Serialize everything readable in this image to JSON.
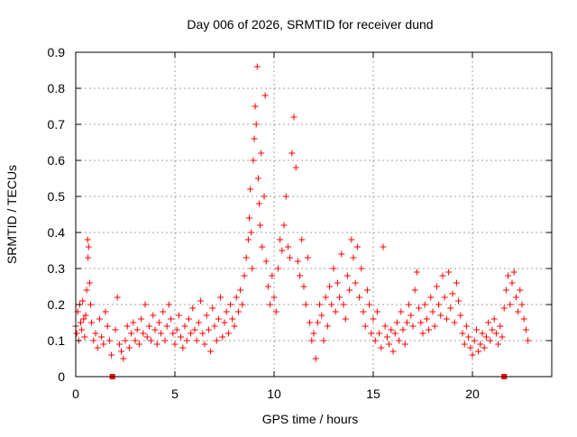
{
  "chart_data": {
    "type": "scatter",
    "title": "Day 006 of 2026, SRMTID for receiver dund",
    "xlabel": "GPS time / hours",
    "ylabel": "SRMTID / TECUs",
    "xlim": [
      0,
      24
    ],
    "ylim": [
      0,
      0.9
    ],
    "xticks": [
      0,
      5,
      10,
      15,
      20
    ],
    "xtick_labels": [
      "0",
      "5",
      "10",
      "15",
      "20"
    ],
    "yticks": [
      0,
      0.1,
      0.2,
      0.3,
      0.4,
      0.5,
      0.6,
      0.7,
      0.8,
      0.9
    ],
    "ytick_labels": [
      "0",
      "0.1",
      "0.2",
      "0.3",
      "0.4",
      "0.5",
      "0.6",
      "0.7",
      "0.8",
      "0.9"
    ],
    "grid": true,
    "marker": "plus",
    "color": "#ff0000",
    "baseline_markers": [
      {
        "x": 1.85,
        "y": 0
      },
      {
        "x": 21.6,
        "y": 0
      }
    ],
    "series": [
      {
        "name": "SRMTID",
        "points": [
          [
            0.0,
            0.14
          ],
          [
            0.05,
            0.12
          ],
          [
            0.1,
            0.18
          ],
          [
            0.15,
            0.1
          ],
          [
            0.2,
            0.2
          ],
          [
            0.25,
            0.15
          ],
          [
            0.3,
            0.13
          ],
          [
            0.35,
            0.21
          ],
          [
            0.4,
            0.16
          ],
          [
            0.45,
            0.11
          ],
          [
            0.5,
            0.17
          ],
          [
            0.55,
            0.24
          ],
          [
            0.6,
            0.38
          ],
          [
            0.62,
            0.33
          ],
          [
            0.65,
            0.36
          ],
          [
            0.7,
            0.26
          ],
          [
            0.75,
            0.2
          ],
          [
            0.8,
            0.15
          ],
          [
            0.9,
            0.1
          ],
          [
            1.0,
            0.12
          ],
          [
            1.1,
            0.08
          ],
          [
            1.2,
            0.16
          ],
          [
            1.3,
            0.11
          ],
          [
            1.4,
            0.09
          ],
          [
            1.5,
            0.18
          ],
          [
            1.6,
            0.14
          ],
          [
            1.7,
            0.1
          ],
          [
            1.8,
            0.06
          ],
          [
            2.0,
            0.13
          ],
          [
            2.1,
            0.22
          ],
          [
            2.2,
            0.09
          ],
          [
            2.3,
            0.07
          ],
          [
            2.4,
            0.05
          ],
          [
            2.5,
            0.1
          ],
          [
            2.6,
            0.14
          ],
          [
            2.7,
            0.08
          ],
          [
            2.8,
            0.12
          ],
          [
            2.9,
            0.15
          ],
          [
            3.0,
            0.1
          ],
          [
            3.1,
            0.13
          ],
          [
            3.2,
            0.09
          ],
          [
            3.3,
            0.16
          ],
          [
            3.4,
            0.12
          ],
          [
            3.5,
            0.2
          ],
          [
            3.6,
            0.11
          ],
          [
            3.7,
            0.14
          ],
          [
            3.8,
            0.1
          ],
          [
            3.9,
            0.17
          ],
          [
            4.0,
            0.13
          ],
          [
            4.1,
            0.09
          ],
          [
            4.2,
            0.15
          ],
          [
            4.3,
            0.12
          ],
          [
            4.4,
            0.18
          ],
          [
            4.5,
            0.1
          ],
          [
            4.6,
            0.14
          ],
          [
            4.7,
            0.2
          ],
          [
            4.8,
            0.16
          ],
          [
            4.9,
            0.12
          ],
          [
            5.0,
            0.09
          ],
          [
            5.1,
            0.13
          ],
          [
            5.2,
            0.17
          ],
          [
            5.3,
            0.11
          ],
          [
            5.4,
            0.08
          ],
          [
            5.5,
            0.14
          ],
          [
            5.6,
            0.1
          ],
          [
            5.7,
            0.16
          ],
          [
            5.8,
            0.12
          ],
          [
            5.9,
            0.19
          ],
          [
            6.0,
            0.13
          ],
          [
            6.1,
            0.1
          ],
          [
            6.2,
            0.15
          ],
          [
            6.3,
            0.21
          ],
          [
            6.4,
            0.12
          ],
          [
            6.5,
            0.09
          ],
          [
            6.6,
            0.17
          ],
          [
            6.7,
            0.13
          ],
          [
            6.8,
            0.07
          ],
          [
            6.9,
            0.19
          ],
          [
            7.0,
            0.14
          ],
          [
            7.1,
            0.1
          ],
          [
            7.2,
            0.16
          ],
          [
            7.3,
            0.22
          ],
          [
            7.4,
            0.11
          ],
          [
            7.5,
            0.15
          ],
          [
            7.6,
            0.18
          ],
          [
            7.7,
            0.12
          ],
          [
            7.8,
            0.2
          ],
          [
            7.9,
            0.16
          ],
          [
            8.0,
            0.14
          ],
          [
            8.1,
            0.22
          ],
          [
            8.2,
            0.18
          ],
          [
            8.3,
            0.24
          ],
          [
            8.4,
            0.2
          ],
          [
            8.5,
            0.28
          ],
          [
            8.6,
            0.33
          ],
          [
            8.7,
            0.38
          ],
          [
            8.75,
            0.44
          ],
          [
            8.8,
            0.52
          ],
          [
            8.85,
            0.4
          ],
          [
            8.9,
            0.3
          ],
          [
            8.95,
            0.6
          ],
          [
            9.0,
            0.66
          ],
          [
            9.05,
            0.75
          ],
          [
            9.1,
            0.7
          ],
          [
            9.15,
            0.86
          ],
          [
            9.2,
            0.55
          ],
          [
            9.25,
            0.48
          ],
          [
            9.3,
            0.42
          ],
          [
            9.35,
            0.62
          ],
          [
            9.4,
            0.36
          ],
          [
            9.5,
            0.5
          ],
          [
            9.55,
            0.78
          ],
          [
            9.6,
            0.32
          ],
          [
            9.7,
            0.25
          ],
          [
            9.8,
            0.2
          ],
          [
            9.9,
            0.28
          ],
          [
            10.0,
            0.22
          ],
          [
            10.1,
            0.18
          ],
          [
            10.2,
            0.3
          ],
          [
            10.3,
            0.38
          ],
          [
            10.4,
            0.35
          ],
          [
            10.5,
            0.42
          ],
          [
            10.6,
            0.5
          ],
          [
            10.7,
            0.36
          ],
          [
            10.8,
            0.33
          ],
          [
            10.9,
            0.62
          ],
          [
            11.0,
            0.72
          ],
          [
            11.1,
            0.58
          ],
          [
            11.2,
            0.32
          ],
          [
            11.3,
            0.28
          ],
          [
            11.4,
            0.38
          ],
          [
            11.5,
            0.25
          ],
          [
            11.6,
            0.2
          ],
          [
            11.7,
            0.33
          ],
          [
            11.8,
            0.15
          ],
          [
            11.9,
            0.1
          ],
          [
            12.0,
            0.12
          ],
          [
            12.1,
            0.05
          ],
          [
            12.2,
            0.15
          ],
          [
            12.3,
            0.2
          ],
          [
            12.4,
            0.17
          ],
          [
            12.5,
            0.1
          ],
          [
            12.6,
            0.22
          ],
          [
            12.7,
            0.14
          ],
          [
            12.8,
            0.25
          ],
          [
            12.9,
            0.2
          ],
          [
            13.0,
            0.3
          ],
          [
            13.1,
            0.18
          ],
          [
            13.2,
            0.26
          ],
          [
            13.3,
            0.22
          ],
          [
            13.4,
            0.34
          ],
          [
            13.5,
            0.2
          ],
          [
            13.6,
            0.16
          ],
          [
            13.7,
            0.28
          ],
          [
            13.8,
            0.24
          ],
          [
            13.9,
            0.38
          ],
          [
            14.0,
            0.33
          ],
          [
            14.1,
            0.26
          ],
          [
            14.2,
            0.36
          ],
          [
            14.3,
            0.22
          ],
          [
            14.4,
            0.3
          ],
          [
            14.5,
            0.18
          ],
          [
            14.6,
            0.14
          ],
          [
            14.7,
            0.24
          ],
          [
            14.8,
            0.2
          ],
          [
            14.9,
            0.12
          ],
          [
            15.0,
            0.16
          ],
          [
            15.1,
            0.1
          ],
          [
            15.2,
            0.18
          ],
          [
            15.3,
            0.12
          ],
          [
            15.4,
            0.08
          ],
          [
            15.5,
            0.36
          ],
          [
            15.6,
            0.14
          ],
          [
            15.7,
            0.11
          ],
          [
            15.8,
            0.09
          ],
          [
            15.9,
            0.13
          ],
          [
            16.0,
            0.07
          ],
          [
            16.1,
            0.12
          ],
          [
            16.2,
            0.15
          ],
          [
            16.3,
            0.1
          ],
          [
            16.4,
            0.18
          ],
          [
            16.5,
            0.13
          ],
          [
            16.6,
            0.09
          ],
          [
            16.7,
            0.15
          ],
          [
            16.8,
            0.2
          ],
          [
            16.9,
            0.17
          ],
          [
            17.0,
            0.14
          ],
          [
            17.1,
            0.24
          ],
          [
            17.2,
            0.29
          ],
          [
            17.3,
            0.19
          ],
          [
            17.4,
            0.15
          ],
          [
            17.5,
            0.12
          ],
          [
            17.6,
            0.2
          ],
          [
            17.7,
            0.16
          ],
          [
            17.8,
            0.13
          ],
          [
            17.9,
            0.22
          ],
          [
            18.0,
            0.18
          ],
          [
            18.1,
            0.14
          ],
          [
            18.2,
            0.25
          ],
          [
            18.3,
            0.2
          ],
          [
            18.4,
            0.17
          ],
          [
            18.5,
            0.28
          ],
          [
            18.6,
            0.22
          ],
          [
            18.7,
            0.16
          ],
          [
            18.8,
            0.29
          ],
          [
            18.9,
            0.19
          ],
          [
            19.0,
            0.23
          ],
          [
            19.1,
            0.15
          ],
          [
            19.2,
            0.26
          ],
          [
            19.3,
            0.21
          ],
          [
            19.4,
            0.17
          ],
          [
            19.5,
            0.12
          ],
          [
            19.6,
            0.09
          ],
          [
            19.7,
            0.14
          ],
          [
            19.8,
            0.11
          ],
          [
            19.9,
            0.08
          ],
          [
            20.0,
            0.06
          ],
          [
            20.1,
            0.1
          ],
          [
            20.2,
            0.13
          ],
          [
            20.3,
            0.07
          ],
          [
            20.4,
            0.09
          ],
          [
            20.5,
            0.12
          ],
          [
            20.6,
            0.08
          ],
          [
            20.7,
            0.11
          ],
          [
            20.8,
            0.15
          ],
          [
            20.9,
            0.1
          ],
          [
            21.0,
            0.13
          ],
          [
            21.1,
            0.16
          ],
          [
            21.2,
            0.12
          ],
          [
            21.3,
            0.09
          ],
          [
            21.4,
            0.14
          ],
          [
            21.5,
            0.11
          ],
          [
            21.6,
            0.19
          ],
          [
            21.7,
            0.24
          ],
          [
            21.8,
            0.28
          ],
          [
            21.9,
            0.2
          ],
          [
            22.0,
            0.26
          ],
          [
            22.1,
            0.29
          ],
          [
            22.2,
            0.22
          ],
          [
            22.3,
            0.18
          ],
          [
            22.4,
            0.24
          ],
          [
            22.5,
            0.2
          ],
          [
            22.6,
            0.16
          ],
          [
            22.7,
            0.13
          ],
          [
            22.8,
            0.1
          ]
        ]
      }
    ]
  }
}
